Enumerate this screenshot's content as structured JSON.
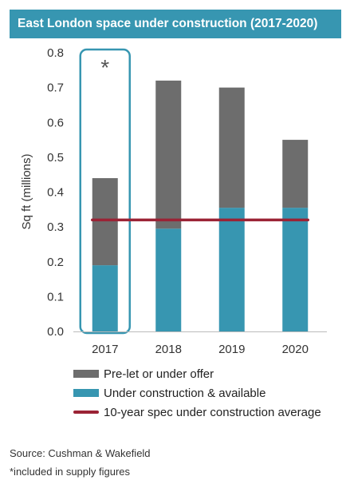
{
  "chart_data": {
    "type": "bar",
    "title": "East London space under construction (2017-2020)",
    "ylabel": "Sq ft (millions)",
    "xlabel": "",
    "categories": [
      "2017",
      "2018",
      "2019",
      "2020"
    ],
    "ylim": [
      0,
      0.8
    ],
    "yticks": [
      "0.0",
      "0.1",
      "0.2",
      "0.3",
      "0.4",
      "0.5",
      "0.6",
      "0.7",
      "0.8"
    ],
    "stacked": true,
    "series": [
      {
        "name": "Under construction & available",
        "values": [
          0.19,
          0.295,
          0.355,
          0.355
        ],
        "color": "#3796b1"
      },
      {
        "name": "Pre-let or under offer",
        "values": [
          0.25,
          0.425,
          0.345,
          0.195
        ],
        "color": "#6d6d6d"
      }
    ],
    "reference_line": {
      "name": "10-year spec under construction average",
      "value": 0.32,
      "color": "#9b2335"
    },
    "highlight": {
      "category": "2017",
      "marker": "*",
      "color": "#3796b1"
    },
    "legend": {
      "placement": "bottom",
      "items": [
        {
          "label": "Pre-let or under offer",
          "color": "#6d6d6d"
        },
        {
          "label": "Under construction & available",
          "color": "#3796b1"
        },
        {
          "label": "10-year spec under construction average",
          "color": "#9b2335"
        }
      ]
    }
  },
  "footer": {
    "source": "Source: Cushman & Wakefield",
    "note": "*included in supply figures"
  }
}
